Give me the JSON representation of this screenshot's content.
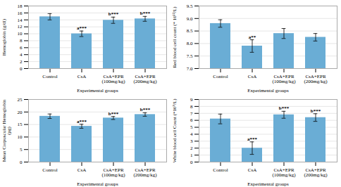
{
  "chart_data": [
    {
      "type": "bar",
      "ylabel": "Hemoglobin (g/dl)",
      "xlabel": "Experimental groups",
      "categories": [
        "Control",
        "CsA",
        "CsA+EPR\n(100mg/kg)",
        "CsA+EPR\n(200mg/kg)"
      ],
      "values": [
        14.9,
        10.0,
        13.9,
        14.3
      ],
      "errors": [
        0.9,
        0.8,
        0.9,
        0.7
      ],
      "annotations": [
        null,
        "a***",
        "b***",
        "b***"
      ],
      "color": "#6aadd5",
      "ylim": [
        0,
        18
      ],
      "yticks": [
        0,
        2,
        4,
        6,
        8,
        10,
        12,
        14,
        16,
        18
      ],
      "grid": true
    },
    {
      "type": "bar",
      "ylabel": "Red blood cell count (* 10¹²/L)",
      "xlabel": "Experimental groups",
      "categories": [
        "Control",
        "CsA",
        "CsA+EPR\n(100mg/kg)",
        "CsA+EPR\n(200mg/kg)"
      ],
      "values": [
        8.8,
        7.9,
        8.4,
        8.25
      ],
      "errors": [
        0.15,
        0.25,
        0.2,
        0.15
      ],
      "annotations": [
        null,
        "a**",
        null,
        null
      ],
      "color": "#6aadd5",
      "ylim": [
        7.0,
        9.5
      ],
      "yticks": [
        {
          "value": 7.0,
          "label": "7.0"
        },
        7.5,
        {
          "value": 8.0,
          "label": "8.0"
        },
        8.5,
        {
          "value": 9.0,
          "label": "9.0"
        },
        9.5
      ],
      "grid": true
    },
    {
      "type": "bar",
      "ylabel": "Mean Corpuscular Hemoglobin\n(pg)",
      "xlabel": "Experimental groups",
      "categories": [
        "Control",
        "CsA",
        "CsA+EPR\n(100mg/kg)",
        "CsA+EPR\n(200mg/kg)"
      ],
      "values": [
        18.3,
        14.3,
        17.6,
        19.0
      ],
      "errors": [
        0.9,
        0.8,
        0.6,
        0.7
      ],
      "annotations": [
        null,
        "a***",
        "b***",
        "b***"
      ],
      "color": "#6aadd5",
      "ylim": [
        0,
        25
      ],
      "yticks": [
        0,
        5,
        10,
        15,
        20,
        25
      ],
      "grid": true
    },
    {
      "type": "bar",
      "ylabel": "White blood cell Count (*10⁹/L)",
      "xlabel": "Experimental groups",
      "categories": [
        "Control",
        "CsA",
        "CsA+EPR\n(100mg/kg)",
        "CsA+EPR\n(200mg/kg)"
      ],
      "values": [
        6.2,
        2.0,
        6.8,
        6.4
      ],
      "errors": [
        0.7,
        0.9,
        0.5,
        0.55
      ],
      "annotations": [
        null,
        "a***",
        "b***",
        "b***"
      ],
      "color": "#6aadd5",
      "ylim": [
        0,
        9
      ],
      "yticks": [
        0,
        1,
        2,
        3,
        4,
        5,
        6,
        7,
        8,
        9
      ],
      "grid": true
    }
  ]
}
